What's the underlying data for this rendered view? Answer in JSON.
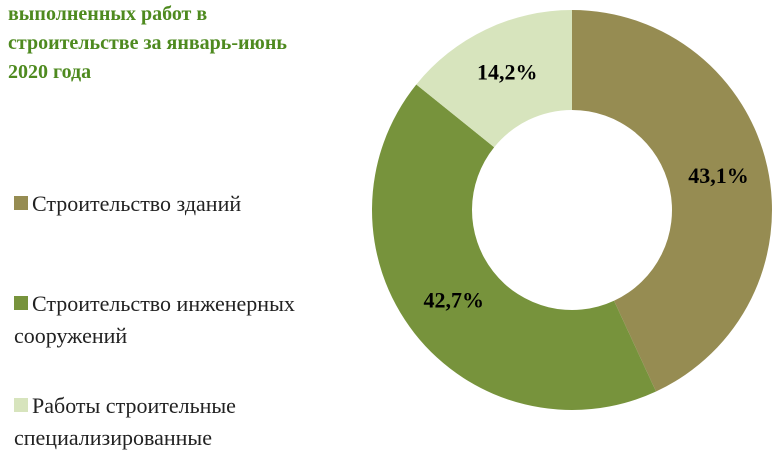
{
  "chart_data": {
    "type": "donut",
    "title": "выполненных работ в строительстве за январь-июнь 2020 года",
    "categories": [
      "Строительство зданий",
      "Строительство инженерных сооружений",
      "Работы строительные специализированные"
    ],
    "values": [
      43.1,
      42.7,
      14.2
    ],
    "value_labels": [
      "43,1%",
      "42,7%",
      "14,2%"
    ],
    "colors": [
      "#968c52",
      "#77933c",
      "#d7e4bd"
    ]
  }
}
